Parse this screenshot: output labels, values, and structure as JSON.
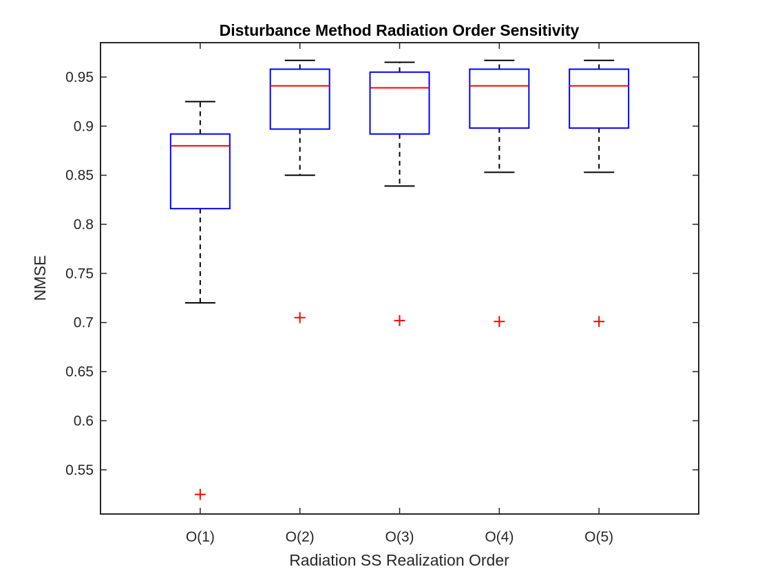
{
  "chart_data": {
    "type": "box",
    "title": "Disturbance Method Radiation Order Sensitivity",
    "xlabel": "Radiation SS Realization Order",
    "ylabel": "NMSE",
    "categories": [
      "O(1)",
      "O(2)",
      "O(3)",
      "O(4)",
      "O(5)"
    ],
    "ylim": [
      0.505,
      0.985
    ],
    "yticks": [
      0.55,
      0.6,
      0.65,
      0.7,
      0.75,
      0.8,
      0.85,
      0.9,
      0.95
    ],
    "ytick_labels": [
      "0.55",
      "0.6",
      "0.65",
      "0.7",
      "0.75",
      "0.8",
      "0.85",
      "0.9",
      "0.95"
    ],
    "grid": false,
    "boxes": [
      {
        "category": "O(1)",
        "whisker_low": 0.72,
        "q1": 0.816,
        "median": 0.88,
        "q3": 0.892,
        "whisker_high": 0.925,
        "outliers": [
          0.525
        ]
      },
      {
        "category": "O(2)",
        "whisker_low": 0.85,
        "q1": 0.897,
        "median": 0.941,
        "q3": 0.958,
        "whisker_high": 0.967,
        "outliers": [
          0.705
        ]
      },
      {
        "category": "O(3)",
        "whisker_low": 0.839,
        "q1": 0.892,
        "median": 0.939,
        "q3": 0.955,
        "whisker_high": 0.965,
        "outliers": [
          0.702
        ]
      },
      {
        "category": "O(4)",
        "whisker_low": 0.853,
        "q1": 0.898,
        "median": 0.941,
        "q3": 0.958,
        "whisker_high": 0.967,
        "outliers": [
          0.701
        ]
      },
      {
        "category": "O(5)",
        "whisker_low": 0.853,
        "q1": 0.898,
        "median": 0.941,
        "q3": 0.958,
        "whisker_high": 0.967,
        "outliers": [
          0.701
        ]
      }
    ],
    "colors": {
      "box": "#0000ff",
      "median": "#ff0000",
      "whisker": "#000000",
      "outlier": "#ff0000",
      "axes": "#262626"
    }
  }
}
